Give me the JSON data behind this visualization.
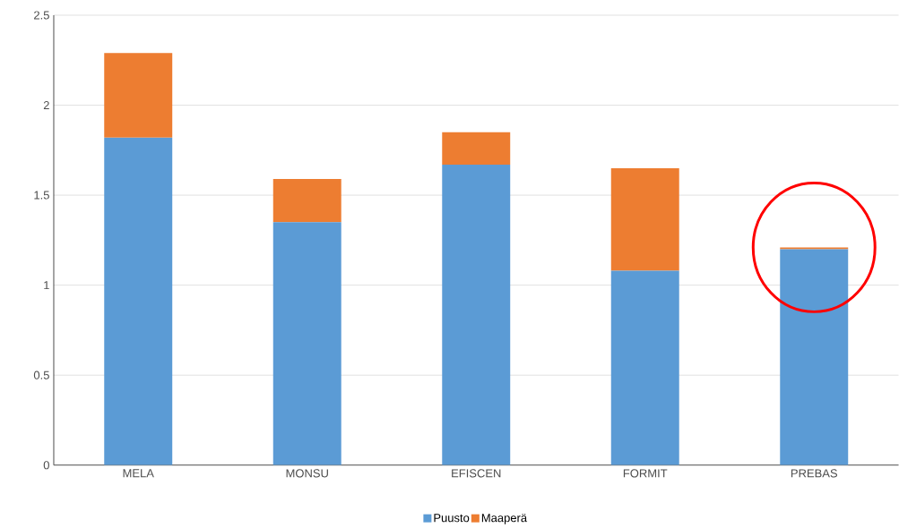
{
  "chart_data": {
    "type": "bar",
    "stacked": true,
    "categories": [
      "MELA",
      "MONSU",
      "EFISCEN",
      "FORMIT",
      "PREBAS"
    ],
    "series": [
      {
        "name": "Puusto",
        "color": "#5b9bd5",
        "values": [
          1.82,
          1.35,
          1.67,
          1.08,
          1.2
        ]
      },
      {
        "name": "Maaperä",
        "color": "#ed7d31",
        "values": [
          0.47,
          0.24,
          0.18,
          0.57,
          0.01
        ]
      }
    ],
    "ylim": [
      0,
      2.5
    ],
    "yticks": [
      0,
      0.5,
      1,
      1.5,
      2,
      2.5
    ],
    "grid": "y",
    "legend": "bottom"
  }
}
